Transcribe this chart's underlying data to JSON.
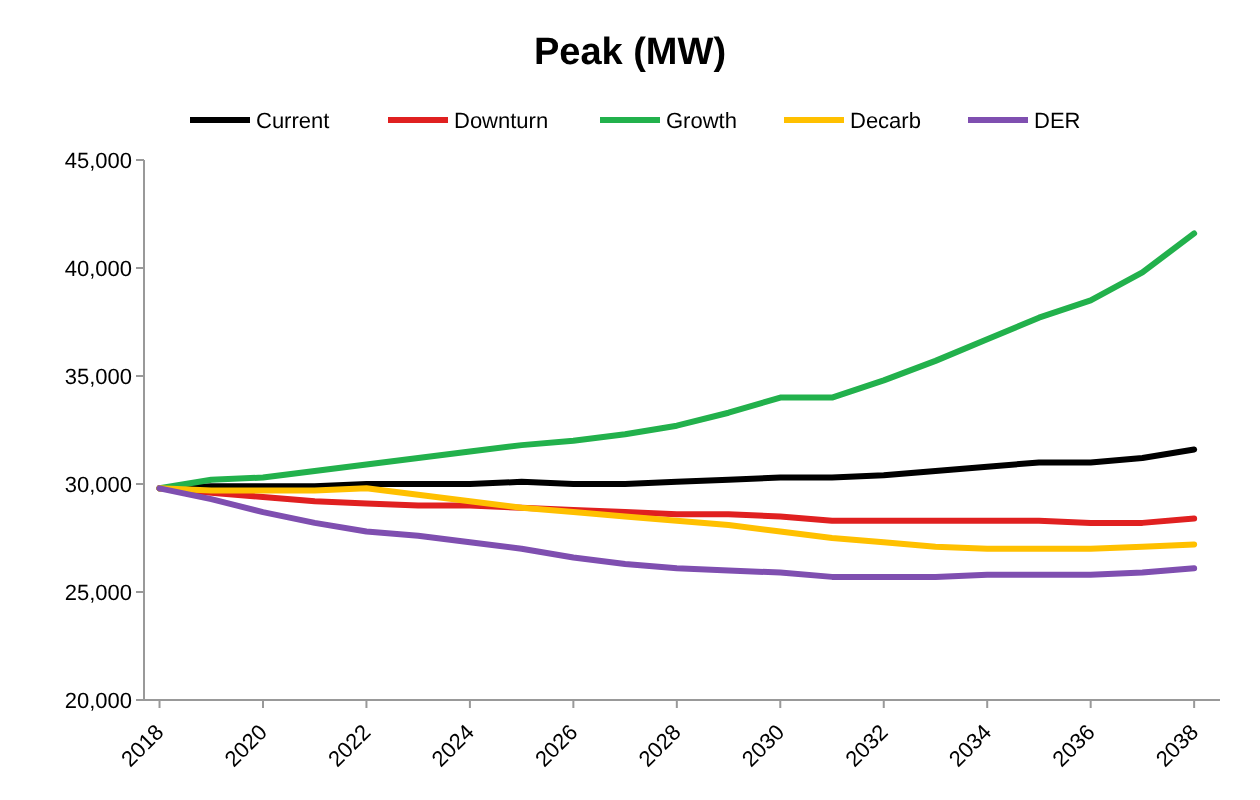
{
  "chart_data": {
    "type": "line",
    "title": "Peak (MW)",
    "x": [
      2018,
      2019,
      2020,
      2021,
      2022,
      2023,
      2024,
      2025,
      2026,
      2027,
      2028,
      2029,
      2030,
      2031,
      2032,
      2033,
      2034,
      2035,
      2036,
      2037,
      2038
    ],
    "series": [
      {
        "name": "Current",
        "color": "#000000",
        "values": [
          29800,
          29900,
          29900,
          29900,
          30000,
          30000,
          30000,
          30100,
          30000,
          30000,
          30100,
          30200,
          30300,
          30300,
          30400,
          30600,
          30800,
          31000,
          31000,
          31200,
          31600
        ]
      },
      {
        "name": "Downturn",
        "color": "#e02020",
        "values": [
          29800,
          29600,
          29400,
          29200,
          29100,
          29000,
          29000,
          28900,
          28800,
          28700,
          28600,
          28600,
          28500,
          28300,
          28300,
          28300,
          28300,
          28300,
          28200,
          28200,
          28400
        ]
      },
      {
        "name": "Growth",
        "color": "#22b14c",
        "values": [
          29800,
          30200,
          30300,
          30600,
          30900,
          31200,
          31500,
          31800,
          32000,
          32300,
          32700,
          33300,
          34000,
          34000,
          34800,
          35700,
          36700,
          37700,
          38500,
          39800,
          41600
        ]
      },
      {
        "name": "Decarb",
        "color": "#ffc000",
        "values": [
          29800,
          29700,
          29700,
          29700,
          29800,
          29500,
          29200,
          28900,
          28700,
          28500,
          28300,
          28100,
          27800,
          27500,
          27300,
          27100,
          27000,
          27000,
          27000,
          27100,
          27200
        ]
      },
      {
        "name": "DER",
        "color": "#7f4fb0",
        "values": [
          29800,
          29300,
          28700,
          28200,
          27800,
          27600,
          27300,
          27000,
          26600,
          26300,
          26100,
          26000,
          25900,
          25700,
          25700,
          25700,
          25800,
          25800,
          25800,
          25900,
          26100
        ]
      }
    ],
    "xlim": [
      2017.7,
      2038.5
    ],
    "xticks": [
      2018,
      2020,
      2022,
      2024,
      2026,
      2028,
      2030,
      2032,
      2034,
      2036,
      2038
    ],
    "ylim": [
      20000,
      45000
    ],
    "yticks": [
      {
        "value": 20000,
        "label": "20,000"
      },
      {
        "value": 25000,
        "label": "25,000"
      },
      {
        "value": 30000,
        "label": "30,000"
      },
      {
        "value": 35000,
        "label": "35,000"
      },
      {
        "value": 40000,
        "label": "40,000"
      },
      {
        "value": 45000,
        "label": "45,000"
      }
    ],
    "grid": false,
    "legend": "top",
    "marker": "none",
    "line_style": "solid"
  }
}
